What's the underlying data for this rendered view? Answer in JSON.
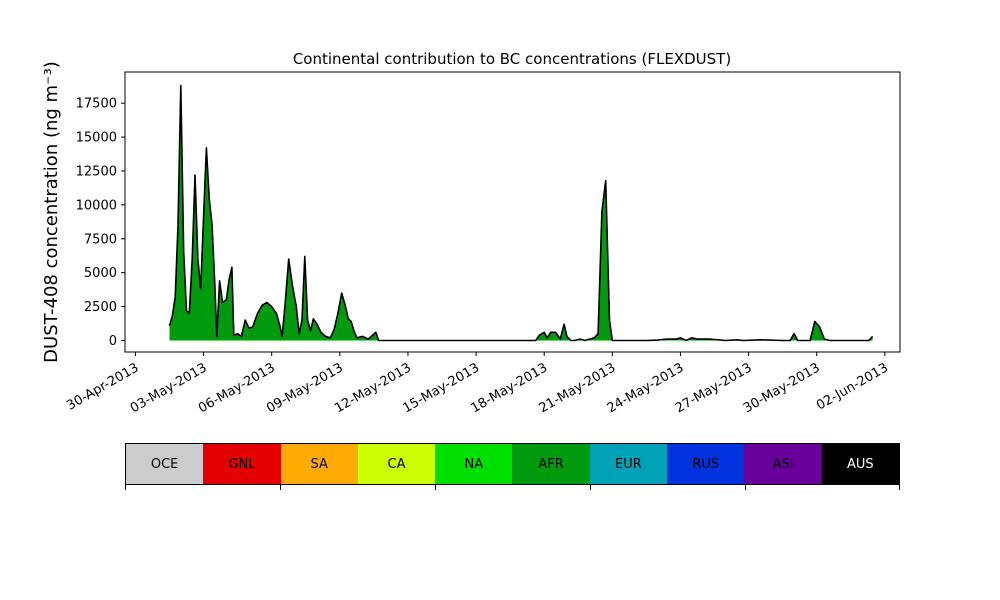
{
  "chart_data": {
    "type": "area",
    "title": "Continental contribution to BC concentrations (FLEXDUST)",
    "ylabel": "DUST-408 concentration (ng m⁻³)",
    "xlabel": "",
    "x_range": [
      "2013-04-29T13:00",
      "2013-06-02T16:00"
    ],
    "ylim": [
      -850,
      19800
    ],
    "y_ticks": [
      0,
      2500,
      5000,
      7500,
      10000,
      12500,
      15000,
      17500
    ],
    "y_tick_labels": [
      "0",
      "2500",
      "5000",
      "7500",
      "10000",
      "12500",
      "15000",
      "17500"
    ],
    "x_ticks": [
      "2013-04-30",
      "2013-05-03",
      "2013-05-06",
      "2013-05-09",
      "2013-05-12",
      "2013-05-15",
      "2013-05-18",
      "2013-05-21",
      "2013-05-24",
      "2013-05-27",
      "2013-05-30",
      "2013-06-02"
    ],
    "x_tick_labels": [
      "30-Apr-2013",
      "03-May-2013",
      "06-May-2013",
      "09-May-2013",
      "12-May-2013",
      "15-May-2013",
      "18-May-2013",
      "21-May-2013",
      "24-May-2013",
      "27-May-2013",
      "30-May-2013",
      "02-Jun-2013"
    ],
    "grid": false,
    "outline_color": "#000000",
    "series": [
      {
        "name": "AFR",
        "color": "#009a0e",
        "points": [
          [
            "2013-05-01T12:00",
            1100
          ],
          [
            "2013-05-01T15:00",
            1800
          ],
          [
            "2013-05-01T18:00",
            3200
          ],
          [
            "2013-05-01T21:00",
            8500
          ],
          [
            "2013-05-02T00:00",
            18800
          ],
          [
            "2013-05-02T03:00",
            6500
          ],
          [
            "2013-05-02T06:00",
            2200
          ],
          [
            "2013-05-02T09:00",
            2000
          ],
          [
            "2013-05-02T12:00",
            6000
          ],
          [
            "2013-05-02T15:00",
            12200
          ],
          [
            "2013-05-02T18:00",
            6000
          ],
          [
            "2013-05-02T21:00",
            3800
          ],
          [
            "2013-05-03T00:00",
            9000
          ],
          [
            "2013-05-03T03:00",
            14200
          ],
          [
            "2013-05-03T06:00",
            10500
          ],
          [
            "2013-05-03T09:00",
            8500
          ],
          [
            "2013-05-03T12:00",
            4000
          ],
          [
            "2013-05-03T14:00",
            300
          ],
          [
            "2013-05-03T17:00",
            4400
          ],
          [
            "2013-05-03T20:00",
            2800
          ],
          [
            "2013-05-04T00:00",
            3000
          ],
          [
            "2013-05-04T03:00",
            4500
          ],
          [
            "2013-05-04T06:00",
            5400
          ],
          [
            "2013-05-04T08:00",
            400
          ],
          [
            "2013-05-04T12:00",
            500
          ],
          [
            "2013-05-04T16:00",
            300
          ],
          [
            "2013-05-04T20:00",
            1500
          ],
          [
            "2013-05-05T00:00",
            900
          ],
          [
            "2013-05-05T04:00",
            1000
          ],
          [
            "2013-05-05T09:00",
            2000
          ],
          [
            "2013-05-05T14:00",
            2600
          ],
          [
            "2013-05-05T19:00",
            2800
          ],
          [
            "2013-05-06T00:00",
            2500
          ],
          [
            "2013-05-06T05:00",
            2000
          ],
          [
            "2013-05-06T09:00",
            1000
          ],
          [
            "2013-05-06T11:00",
            300
          ],
          [
            "2013-05-06T14:00",
            2500
          ],
          [
            "2013-05-06T18:00",
            6000
          ],
          [
            "2013-05-06T22:00",
            4000
          ],
          [
            "2013-05-07T02:00",
            2500
          ],
          [
            "2013-05-07T05:00",
            500
          ],
          [
            "2013-05-07T08:00",
            1500
          ],
          [
            "2013-05-07T11:00",
            6200
          ],
          [
            "2013-05-07T14:00",
            1500
          ],
          [
            "2013-05-07T17:00",
            700
          ],
          [
            "2013-05-07T20:00",
            1600
          ],
          [
            "2013-05-08T00:00",
            1200
          ],
          [
            "2013-05-08T04:00",
            600
          ],
          [
            "2013-05-08T09:00",
            300
          ],
          [
            "2013-05-08T14:00",
            200
          ],
          [
            "2013-05-08T18:00",
            800
          ],
          [
            "2013-05-08T22:00",
            2000
          ],
          [
            "2013-05-09T02:00",
            3500
          ],
          [
            "2013-05-09T06:00",
            2500
          ],
          [
            "2013-05-09T09:00",
            1600
          ],
          [
            "2013-05-09T12:00",
            1400
          ],
          [
            "2013-05-09T15:00",
            700
          ],
          [
            "2013-05-09T18:00",
            200
          ],
          [
            "2013-05-10T00:00",
            300
          ],
          [
            "2013-05-10T06:00",
            100
          ],
          [
            "2013-05-10T10:00",
            350
          ],
          [
            "2013-05-10T14:00",
            600
          ],
          [
            "2013-05-10T17:00",
            0
          ],
          [
            "2013-05-17T15:00",
            0
          ],
          [
            "2013-05-17T19:00",
            400
          ],
          [
            "2013-05-18T00:00",
            600
          ],
          [
            "2013-05-18T03:00",
            200
          ],
          [
            "2013-05-18T07:00",
            600
          ],
          [
            "2013-05-18T12:00",
            600
          ],
          [
            "2013-05-18T17:00",
            100
          ],
          [
            "2013-05-18T21:00",
            1200
          ],
          [
            "2013-05-19T00:00",
            300
          ],
          [
            "2013-05-19T04:00",
            0
          ],
          [
            "2013-05-19T08:00",
            0
          ],
          [
            "2013-05-19T14:00",
            100
          ],
          [
            "2013-05-19T19:00",
            0
          ],
          [
            "2013-05-20T00:00",
            100
          ],
          [
            "2013-05-20T05:00",
            200
          ],
          [
            "2013-05-20T09:00",
            500
          ],
          [
            "2013-05-20T13:00",
            9500
          ],
          [
            "2013-05-20T17:00",
            11800
          ],
          [
            "2013-05-20T21:00",
            1500
          ],
          [
            "2013-05-21T00:00",
            0
          ],
          [
            "2013-05-22T12:00",
            0
          ],
          [
            "2013-05-23T00:00",
            30
          ],
          [
            "2013-05-23T10:00",
            100
          ],
          [
            "2013-05-23T20:00",
            100
          ],
          [
            "2013-05-24T00:00",
            200
          ],
          [
            "2013-05-24T06:00",
            0
          ],
          [
            "2013-05-24T12:00",
            200
          ],
          [
            "2013-05-24T18:00",
            100
          ],
          [
            "2013-05-25T06:00",
            100
          ],
          [
            "2013-05-26T00:00",
            0
          ],
          [
            "2013-05-26T12:00",
            50
          ],
          [
            "2013-05-26T18:00",
            0
          ],
          [
            "2013-05-27T12:00",
            50
          ],
          [
            "2013-05-28T12:00",
            0
          ],
          [
            "2013-05-28T20:00",
            0
          ],
          [
            "2013-05-29T00:00",
            500
          ],
          [
            "2013-05-29T04:00",
            0
          ],
          [
            "2013-05-29T17:00",
            0
          ],
          [
            "2013-05-29T22:00",
            1400
          ],
          [
            "2013-05-30T03:00",
            1000
          ],
          [
            "2013-05-30T08:00",
            100
          ],
          [
            "2013-05-30T14:00",
            0
          ],
          [
            "2013-06-01T07:00",
            0
          ],
          [
            "2013-06-01T11:00",
            300
          ]
        ]
      }
    ],
    "legend": [
      {
        "label": "OCE",
        "color": "#cccccc"
      },
      {
        "label": "GNL",
        "color": "#e40000"
      },
      {
        "label": "SA",
        "color": "#ffaa00"
      },
      {
        "label": "CA",
        "color": "#ccff00"
      },
      {
        "label": "NA",
        "color": "#00e000"
      },
      {
        "label": "AFR",
        "color": "#009a0e"
      },
      {
        "label": "EUR",
        "color": "#00a2b8"
      },
      {
        "label": "RUS",
        "color": "#0033dd"
      },
      {
        "label": "ASI",
        "color": "#6a009b"
      },
      {
        "label": "AUS",
        "color": "#000000"
      }
    ],
    "legend_placement": "bottom"
  }
}
